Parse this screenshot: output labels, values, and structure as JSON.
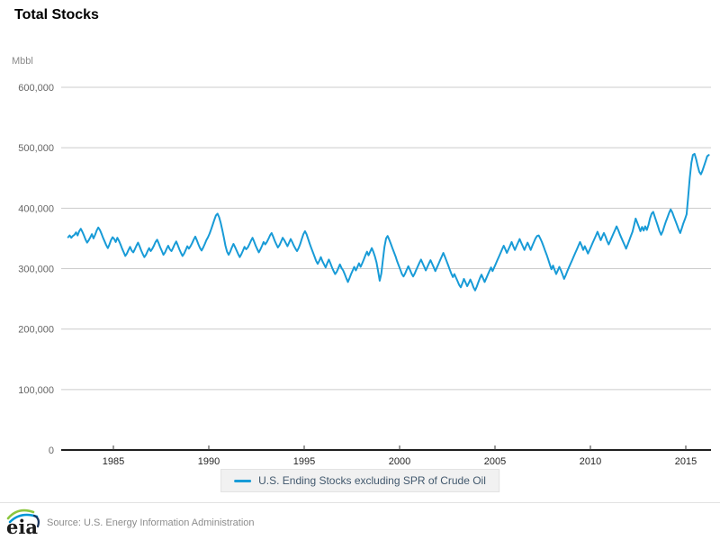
{
  "header": {
    "title": "Total Stocks",
    "unit_label": "Mbbl"
  },
  "legend": {
    "label": "U.S. Ending Stocks excluding SPR of Crude Oil"
  },
  "footer": {
    "logo_text": "eia",
    "source": "Source: U.S. Energy Information Administration"
  },
  "colors": {
    "line": "#189bd7",
    "grid": "#cccccc",
    "zero_axis": "#000000",
    "tick": "#333333",
    "legend_bg": "#f1f1f1",
    "legend_text": "#41586d",
    "muted_text": "#8c8c8c",
    "logo_green": "#8cc63f",
    "logo_blue": "#0096d6",
    "logo_dark": "#1a355e"
  },
  "chart_data": {
    "type": "line",
    "title": "Total Stocks",
    "ylabel": "Mbbl",
    "xlabel": "",
    "grid": "horizontal",
    "legend_position": "bottom",
    "ylim": [
      0,
      600000
    ],
    "xlim": [
      1982.4,
      2016.5
    ],
    "x_ticks": [
      1985,
      1990,
      1995,
      2000,
      2005,
      2010,
      2015
    ],
    "y_ticks": [
      {
        "v": 0,
        "label": "0"
      },
      {
        "v": 100000,
        "label": "100,000"
      },
      {
        "v": 200000,
        "label": "200,000"
      },
      {
        "v": 300000,
        "label": "300,000"
      },
      {
        "v": 400000,
        "label": "400,000"
      },
      {
        "v": 500000,
        "label": "500,000"
      },
      {
        "v": 600000,
        "label": "600,000"
      }
    ],
    "series": [
      {
        "name": "U.S. Ending Stocks excluding SPR of Crude Oil",
        "color": "#189bd7",
        "x_start": 1982.625,
        "x_step": 0.0833333,
        "values": [
          352000,
          355000,
          351000,
          354000,
          356000,
          360000,
          355000,
          362000,
          366000,
          361000,
          355000,
          348000,
          343000,
          347000,
          352000,
          357000,
          350000,
          356000,
          363000,
          368000,
          364000,
          358000,
          351000,
          345000,
          339000,
          334000,
          340000,
          347000,
          352000,
          349000,
          344000,
          351000,
          346000,
          340000,
          333000,
          327000,
          321000,
          325000,
          331000,
          336000,
          330000,
          327000,
          332000,
          338000,
          343000,
          337000,
          330000,
          324000,
          319000,
          323000,
          329000,
          334000,
          329000,
          333000,
          338000,
          344000,
          348000,
          342000,
          335000,
          329000,
          323000,
          327000,
          333000,
          338000,
          332000,
          329000,
          334000,
          340000,
          345000,
          339000,
          332000,
          326000,
          321000,
          325000,
          331000,
          337000,
          333000,
          337000,
          342000,
          348000,
          353000,
          347000,
          340000,
          334000,
          330000,
          335000,
          341000,
          347000,
          352000,
          358000,
          365000,
          373000,
          381000,
          388000,
          391000,
          385000,
          376000,
          364000,
          351000,
          338000,
          328000,
          323000,
          328000,
          335000,
          341000,
          336000,
          330000,
          324000,
          319000,
          324000,
          330000,
          336000,
          332000,
          335000,
          340000,
          346000,
          351000,
          345000,
          338000,
          332000,
          327000,
          332000,
          338000,
          344000,
          340000,
          344000,
          349000,
          355000,
          359000,
          353000,
          346000,
          340000,
          335000,
          339000,
          345000,
          351000,
          347000,
          342000,
          337000,
          343000,
          349000,
          344000,
          338000,
          333000,
          329000,
          334000,
          341000,
          349000,
          357000,
          362000,
          357000,
          349000,
          341000,
          334000,
          327000,
          320000,
          313000,
          308000,
          313000,
          319000,
          312000,
          307000,
          302000,
          309000,
          315000,
          309000,
          302000,
          296000,
          291000,
          295000,
          301000,
          307000,
          301000,
          297000,
          291000,
          284000,
          278000,
          284000,
          291000,
          297000,
          303000,
          297000,
          303000,
          309000,
          303000,
          309000,
          315000,
          322000,
          328000,
          322000,
          328000,
          334000,
          328000,
          320000,
          310000,
          296000,
          280000,
          292000,
          314000,
          336000,
          350000,
          354000,
          348000,
          341000,
          334000,
          327000,
          320000,
          312000,
          305000,
          298000,
          291000,
          287000,
          292000,
          298000,
          304000,
          298000,
          292000,
          287000,
          292000,
          298000,
          304000,
          310000,
          315000,
          309000,
          303000,
          297000,
          303000,
          309000,
          314000,
          308000,
          302000,
          296000,
          302000,
          308000,
          314000,
          320000,
          326000,
          320000,
          313000,
          306000,
          299000,
          292000,
          286000,
          291000,
          285000,
          279000,
          273000,
          269000,
          276000,
          283000,
          277000,
          271000,
          276000,
          282000,
          276000,
          269000,
          264000,
          270000,
          277000,
          284000,
          290000,
          284000,
          278000,
          284000,
          290000,
          296000,
          302000,
          296000,
          302000,
          308000,
          314000,
          320000,
          326000,
          332000,
          338000,
          332000,
          326000,
          332000,
          338000,
          344000,
          337000,
          331000,
          337000,
          343000,
          349000,
          343000,
          337000,
          331000,
          337000,
          343000,
          337000,
          331000,
          338000,
          344000,
          350000,
          354000,
          355000,
          350000,
          344000,
          337000,
          330000,
          323000,
          315000,
          307000,
          299000,
          305000,
          298000,
          291000,
          297000,
          303000,
          297000,
          290000,
          283000,
          289000,
          296000,
          302000,
          308000,
          314000,
          320000,
          326000,
          332000,
          338000,
          344000,
          338000,
          331000,
          337000,
          331000,
          325000,
          331000,
          337000,
          343000,
          349000,
          355000,
          361000,
          354000,
          347000,
          353000,
          359000,
          353000,
          346000,
          340000,
          346000,
          352000,
          358000,
          364000,
          370000,
          364000,
          357000,
          351000,
          345000,
          339000,
          333000,
          340000,
          347000,
          354000,
          361000,
          372000,
          383000,
          376000,
          369000,
          362000,
          369000,
          363000,
          370000,
          364000,
          372000,
          383000,
          391000,
          394000,
          386000,
          378000,
          370000,
          362000,
          356000,
          362000,
          370000,
          378000,
          385000,
          392000,
          398000,
          393000,
          386000,
          379000,
          372000,
          365000,
          359000,
          367000,
          375000,
          382000,
          390000,
          418000,
          450000,
          475000,
          488000,
          490000,
          481000,
          470000,
          460000,
          456000,
          462000,
          470000,
          478000,
          486000,
          488000
        ]
      }
    ]
  }
}
